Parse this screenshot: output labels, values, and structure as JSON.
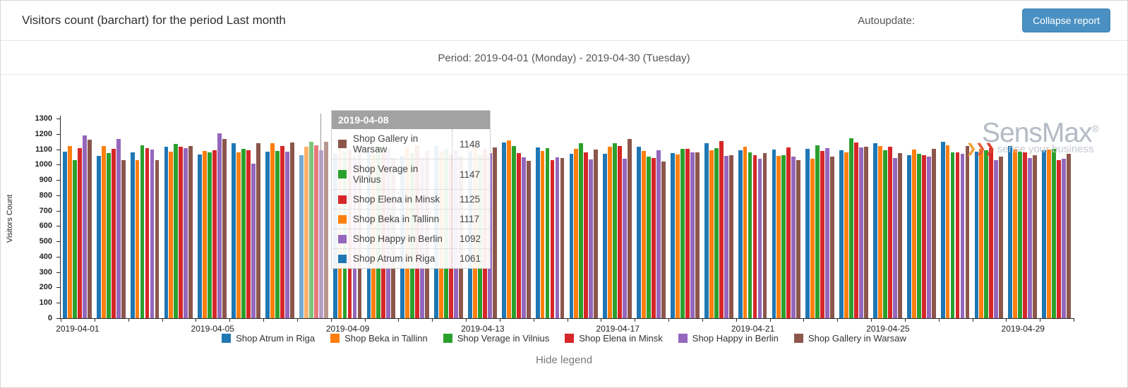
{
  "header": {
    "title": "Visitors count (barchart) for the period Last month",
    "autoupdate_label": "Autoupdate:",
    "collapse_button_label": "Collapse report"
  },
  "period": {
    "text": "Period: 2019-04-01 (Monday) - 2019-04-30 (Tuesday)"
  },
  "tooltip": {
    "date": "2019-04-08",
    "rows": [
      {
        "label": "Shop Gallery in Warsaw",
        "value": "1148",
        "color": "#8c564b"
      },
      {
        "label": "Shop Verage in Vilnius",
        "value": "1147",
        "color": "#2ca02c"
      },
      {
        "label": "Shop Elena in Minsk",
        "value": "1125",
        "color": "#d62728"
      },
      {
        "label": "Shop Beka in Tallinn",
        "value": "1117",
        "color": "#ff7f0e"
      },
      {
        "label": "Shop Happy in Berlin",
        "value": "1092",
        "color": "#9467bd"
      },
      {
        "label": "Shop Atrum in Riga",
        "value": "1061",
        "color": "#1f77b4"
      }
    ]
  },
  "legend": {
    "items": [
      {
        "label": "Shop Atrum in Riga",
        "color": "#1f77b4"
      },
      {
        "label": "Shop Beka in Tallinn",
        "color": "#ff7f0e"
      },
      {
        "label": "Shop Verage in Vilnius",
        "color": "#2ca02c"
      },
      {
        "label": "Shop Elena in Minsk",
        "color": "#d62728"
      },
      {
        "label": "Shop Happy in Berlin",
        "color": "#9467bd"
      },
      {
        "label": "Shop Gallery in Warsaw",
        "color": "#8c564b"
      }
    ],
    "hide_label": "Hide legend"
  },
  "watermark": {
    "brand": "SensMax",
    "reg": "®",
    "tagline": "sense your business",
    "chevron_colors": [
      "#f0a23c",
      "#e8623a",
      "#dd3e30"
    ]
  },
  "chart_data": {
    "type": "bar",
    "title": "Visitors count (barchart) for the period Last month",
    "xlabel": "",
    "ylabel": "Visitors Count",
    "ylim": [
      0,
      1300
    ],
    "ytick_step": 100,
    "grid": false,
    "legend_position": "bottom",
    "hovered_category": "2019-04-08",
    "x_tick_labels": [
      "2019-04-01",
      "2019-04-05",
      "2019-04-09",
      "2019-04-13",
      "2019-04-17",
      "2019-04-21",
      "2019-04-25",
      "2019-04-29"
    ],
    "categories": [
      "2019-04-01",
      "2019-04-02",
      "2019-04-03",
      "2019-04-04",
      "2019-04-05",
      "2019-04-06",
      "2019-04-07",
      "2019-04-08",
      "2019-04-09",
      "2019-04-10",
      "2019-04-11",
      "2019-04-12",
      "2019-04-13",
      "2019-04-14",
      "2019-04-15",
      "2019-04-16",
      "2019-04-17",
      "2019-04-18",
      "2019-04-19",
      "2019-04-20",
      "2019-04-21",
      "2019-04-22",
      "2019-04-23",
      "2019-04-24",
      "2019-04-25",
      "2019-04-26",
      "2019-04-27",
      "2019-04-28",
      "2019-04-29",
      "2019-04-30"
    ],
    "series": [
      {
        "name": "Shop Atrum in Riga",
        "color": "#1f77b4",
        "values": [
          1085,
          1057,
          1080,
          1115,
          1066,
          1141,
          1083,
          1061,
          1072,
          1098,
          1055,
          1119,
          1088,
          1144,
          1112,
          1070,
          1070,
          1116,
          1075,
          1141,
          1093,
          1099,
          1101,
          1095,
          1138,
          1062,
          1147,
          1086,
          1121,
          1094
        ]
      },
      {
        "name": "Shop Beka in Tallinn",
        "color": "#ff7f0e",
        "values": [
          1120,
          1120,
          1030,
          1084,
          1090,
          1078,
          1139,
          1117,
          1108,
          1064,
          1110,
          1083,
          1126,
          1157,
          1089,
          1102,
          1116,
          1090,
          1066,
          1095,
          1116,
          1057,
          1038,
          1079,
          1120,
          1097,
          1124,
          1102,
          1100,
          1098
        ]
      },
      {
        "name": "Shop Verage in Vilnius",
        "color": "#2ca02c",
        "values": [
          1030,
          1075,
          1125,
          1136,
          1081,
          1104,
          1091,
          1147,
          1085,
          1121,
          1076,
          1104,
          1059,
          1120,
          1109,
          1141,
          1140,
          1052,
          1101,
          1106,
          1080,
          1062,
          1125,
          1171,
          1095,
          1070,
          1081,
          1093,
          1086,
          1101
        ]
      },
      {
        "name": "Shop Elena in Minsk",
        "color": "#d62728",
        "values": [
          1107,
          1102,
          1108,
          1118,
          1093,
          1093,
          1120,
          1125,
          1097,
          1079,
          1125,
          1068,
          1101,
          1075,
          1031,
          1080,
          1120,
          1045,
          1103,
          1151,
          1062,
          1112,
          1089,
          1144,
          1116,
          1059,
          1078,
          1108,
          1081,
          1027
        ]
      },
      {
        "name": "Shop Happy in Berlin",
        "color": "#9467bd",
        "values": [
          1190,
          1167,
          1097,
          1105,
          1205,
          1006,
          1083,
          1092,
          1060,
          1103,
          1047,
          1092,
          1073,
          1047,
          1049,
          1035,
          1037,
          1093,
          1079,
          1055,
          1038,
          1054,
          1107,
          1111,
          1045,
          1053,
          1070,
          1031,
          1044,
          1040
        ]
      },
      {
        "name": "Shop Gallery in Warsaw",
        "color": "#8c564b",
        "values": [
          1162,
          1030,
          1030,
          1122,
          1165,
          1138,
          1143,
          1148,
          1115,
          1042,
          1089,
          1057,
          1110,
          1024,
          1041,
          1096,
          1165,
          1019,
          1078,
          1062,
          1073,
          1029,
          1051,
          1116,
          1075,
          1104,
          1121,
          1050,
          1060,
          1070
        ]
      }
    ]
  }
}
